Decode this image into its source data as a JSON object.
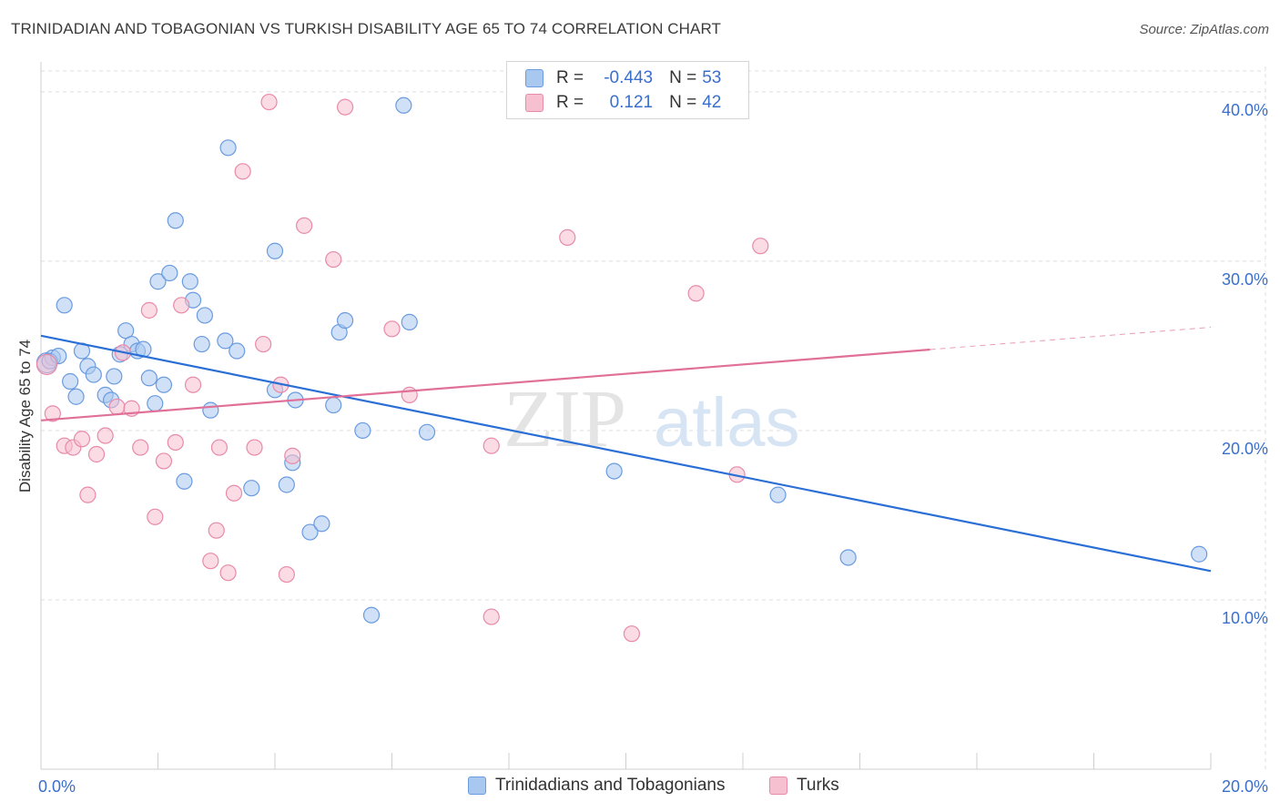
{
  "header": {
    "title": "TRINIDADIAN AND TOBAGONIAN VS TURKISH DISABILITY AGE 65 TO 74 CORRELATION CHART",
    "source": "Source: ZipAtlas.com"
  },
  "legend": {
    "series": [
      {
        "name": "Trinidadians and Tobagonians",
        "r_label": "R =",
        "r_value": "-0.443",
        "n_label": "N =",
        "n_value": "53",
        "color": "#a9c8f0",
        "stroke": "#6a9be0"
      },
      {
        "name": "Turks",
        "r_label": "R =",
        "r_value": "0.121",
        "n_label": "N =",
        "n_value": "42",
        "color": "#f7c0d0",
        "stroke": "#e88aa8"
      }
    ]
  },
  "colors": {
    "blue_fill": "#a9c8f0",
    "blue_stroke": "#6a9be0",
    "blue_line": "#2a6fd6",
    "pink_fill": "#f7c0d0",
    "pink_stroke": "#e88aa8",
    "pink_line": "#e07098",
    "axis_label": "#3a6fcc",
    "grid": "#dcdcdc"
  },
  "watermark": {
    "zip": "ZIP",
    "atlas": "atlas"
  },
  "chart_data": {
    "type": "scatter",
    "xlabel": "",
    "ylabel": "Disability Age 65 to 74",
    "xlim": [
      0,
      20
    ],
    "ylim": [
      0,
      41.5
    ],
    "x_tick_labels": [
      "0.0%",
      "20.0%"
    ],
    "y_ticks": [
      10,
      20,
      30,
      40
    ],
    "y_tick_labels": [
      "10.0%",
      "20.0%",
      "30.0%",
      "40.0%"
    ],
    "grid": true,
    "legend_position": "top-center",
    "series": [
      {
        "name": "Trinidadians and Tobagonians",
        "trend": {
          "x": [
            0,
            20
          ],
          "y": [
            25.6,
            11.7
          ],
          "solid_to": 20
        },
        "points": [
          [
            0.1,
            24.0
          ],
          [
            0.2,
            24.3
          ],
          [
            0.4,
            27.4
          ],
          [
            0.5,
            22.9
          ],
          [
            0.6,
            22.0
          ],
          [
            0.7,
            24.7
          ],
          [
            0.8,
            23.8
          ],
          [
            0.9,
            23.3
          ],
          [
            1.1,
            22.1
          ],
          [
            1.2,
            21.8
          ],
          [
            1.25,
            23.2
          ],
          [
            1.35,
            24.5
          ],
          [
            1.45,
            25.9
          ],
          [
            1.55,
            25.1
          ],
          [
            1.65,
            24.7
          ],
          [
            1.75,
            24.8
          ],
          [
            1.85,
            23.1
          ],
          [
            1.95,
            21.6
          ],
          [
            2.0,
            28.8
          ],
          [
            2.1,
            22.7
          ],
          [
            2.2,
            29.3
          ],
          [
            2.3,
            32.4
          ],
          [
            2.45,
            17.0
          ],
          [
            2.55,
            28.8
          ],
          [
            2.6,
            27.7
          ],
          [
            2.8,
            26.8
          ],
          [
            2.75,
            25.1
          ],
          [
            2.9,
            21.2
          ],
          [
            3.15,
            25.3
          ],
          [
            3.2,
            36.7
          ],
          [
            3.35,
            24.7
          ],
          [
            3.6,
            16.6
          ],
          [
            4.0,
            30.6
          ],
          [
            4.0,
            22.4
          ],
          [
            4.2,
            16.8
          ],
          [
            4.3,
            18.1
          ],
          [
            4.35,
            21.8
          ],
          [
            4.6,
            14.0
          ],
          [
            4.8,
            14.5
          ],
          [
            5.0,
            21.5
          ],
          [
            5.1,
            25.8
          ],
          [
            5.2,
            26.5
          ],
          [
            5.5,
            20.0
          ],
          [
            5.65,
            9.1
          ],
          [
            6.2,
            39.2
          ],
          [
            6.3,
            26.4
          ],
          [
            6.6,
            19.9
          ],
          [
            9.8,
            17.6
          ],
          [
            12.6,
            16.2
          ],
          [
            13.8,
            12.5
          ],
          [
            19.8,
            12.7
          ],
          [
            0.15,
            24.1
          ],
          [
            0.3,
            24.4
          ]
        ]
      },
      {
        "name": "Turks",
        "trend": {
          "x": [
            0,
            20
          ],
          "y": [
            20.6,
            26.1
          ],
          "solid_to": 15.2
        },
        "points": [
          [
            0.1,
            23.9
          ],
          [
            0.2,
            21.0
          ],
          [
            0.4,
            19.1
          ],
          [
            0.55,
            19.0
          ],
          [
            0.7,
            19.5
          ],
          [
            0.8,
            16.2
          ],
          [
            0.95,
            18.6
          ],
          [
            1.1,
            19.7
          ],
          [
            1.3,
            21.4
          ],
          [
            1.4,
            24.6
          ],
          [
            1.55,
            21.3
          ],
          [
            1.7,
            19.0
          ],
          [
            1.85,
            27.1
          ],
          [
            1.95,
            14.9
          ],
          [
            2.1,
            18.2
          ],
          [
            2.3,
            19.3
          ],
          [
            2.4,
            27.4
          ],
          [
            2.6,
            22.7
          ],
          [
            2.9,
            12.3
          ],
          [
            3.0,
            14.1
          ],
          [
            3.05,
            19.0
          ],
          [
            3.2,
            11.6
          ],
          [
            3.3,
            16.3
          ],
          [
            3.45,
            35.3
          ],
          [
            3.65,
            19.0
          ],
          [
            3.8,
            25.1
          ],
          [
            3.9,
            39.4
          ],
          [
            4.1,
            22.7
          ],
          [
            4.2,
            11.5
          ],
          [
            4.3,
            18.5
          ],
          [
            4.5,
            32.1
          ],
          [
            5.0,
            30.1
          ],
          [
            5.2,
            39.1
          ],
          [
            6.0,
            26.0
          ],
          [
            6.3,
            22.1
          ],
          [
            7.7,
            19.1
          ],
          [
            7.7,
            9.0
          ],
          [
            9.0,
            31.4
          ],
          [
            10.1,
            8.0
          ],
          [
            11.2,
            28.1
          ],
          [
            11.9,
            17.4
          ],
          [
            12.3,
            30.9
          ]
        ]
      }
    ]
  }
}
